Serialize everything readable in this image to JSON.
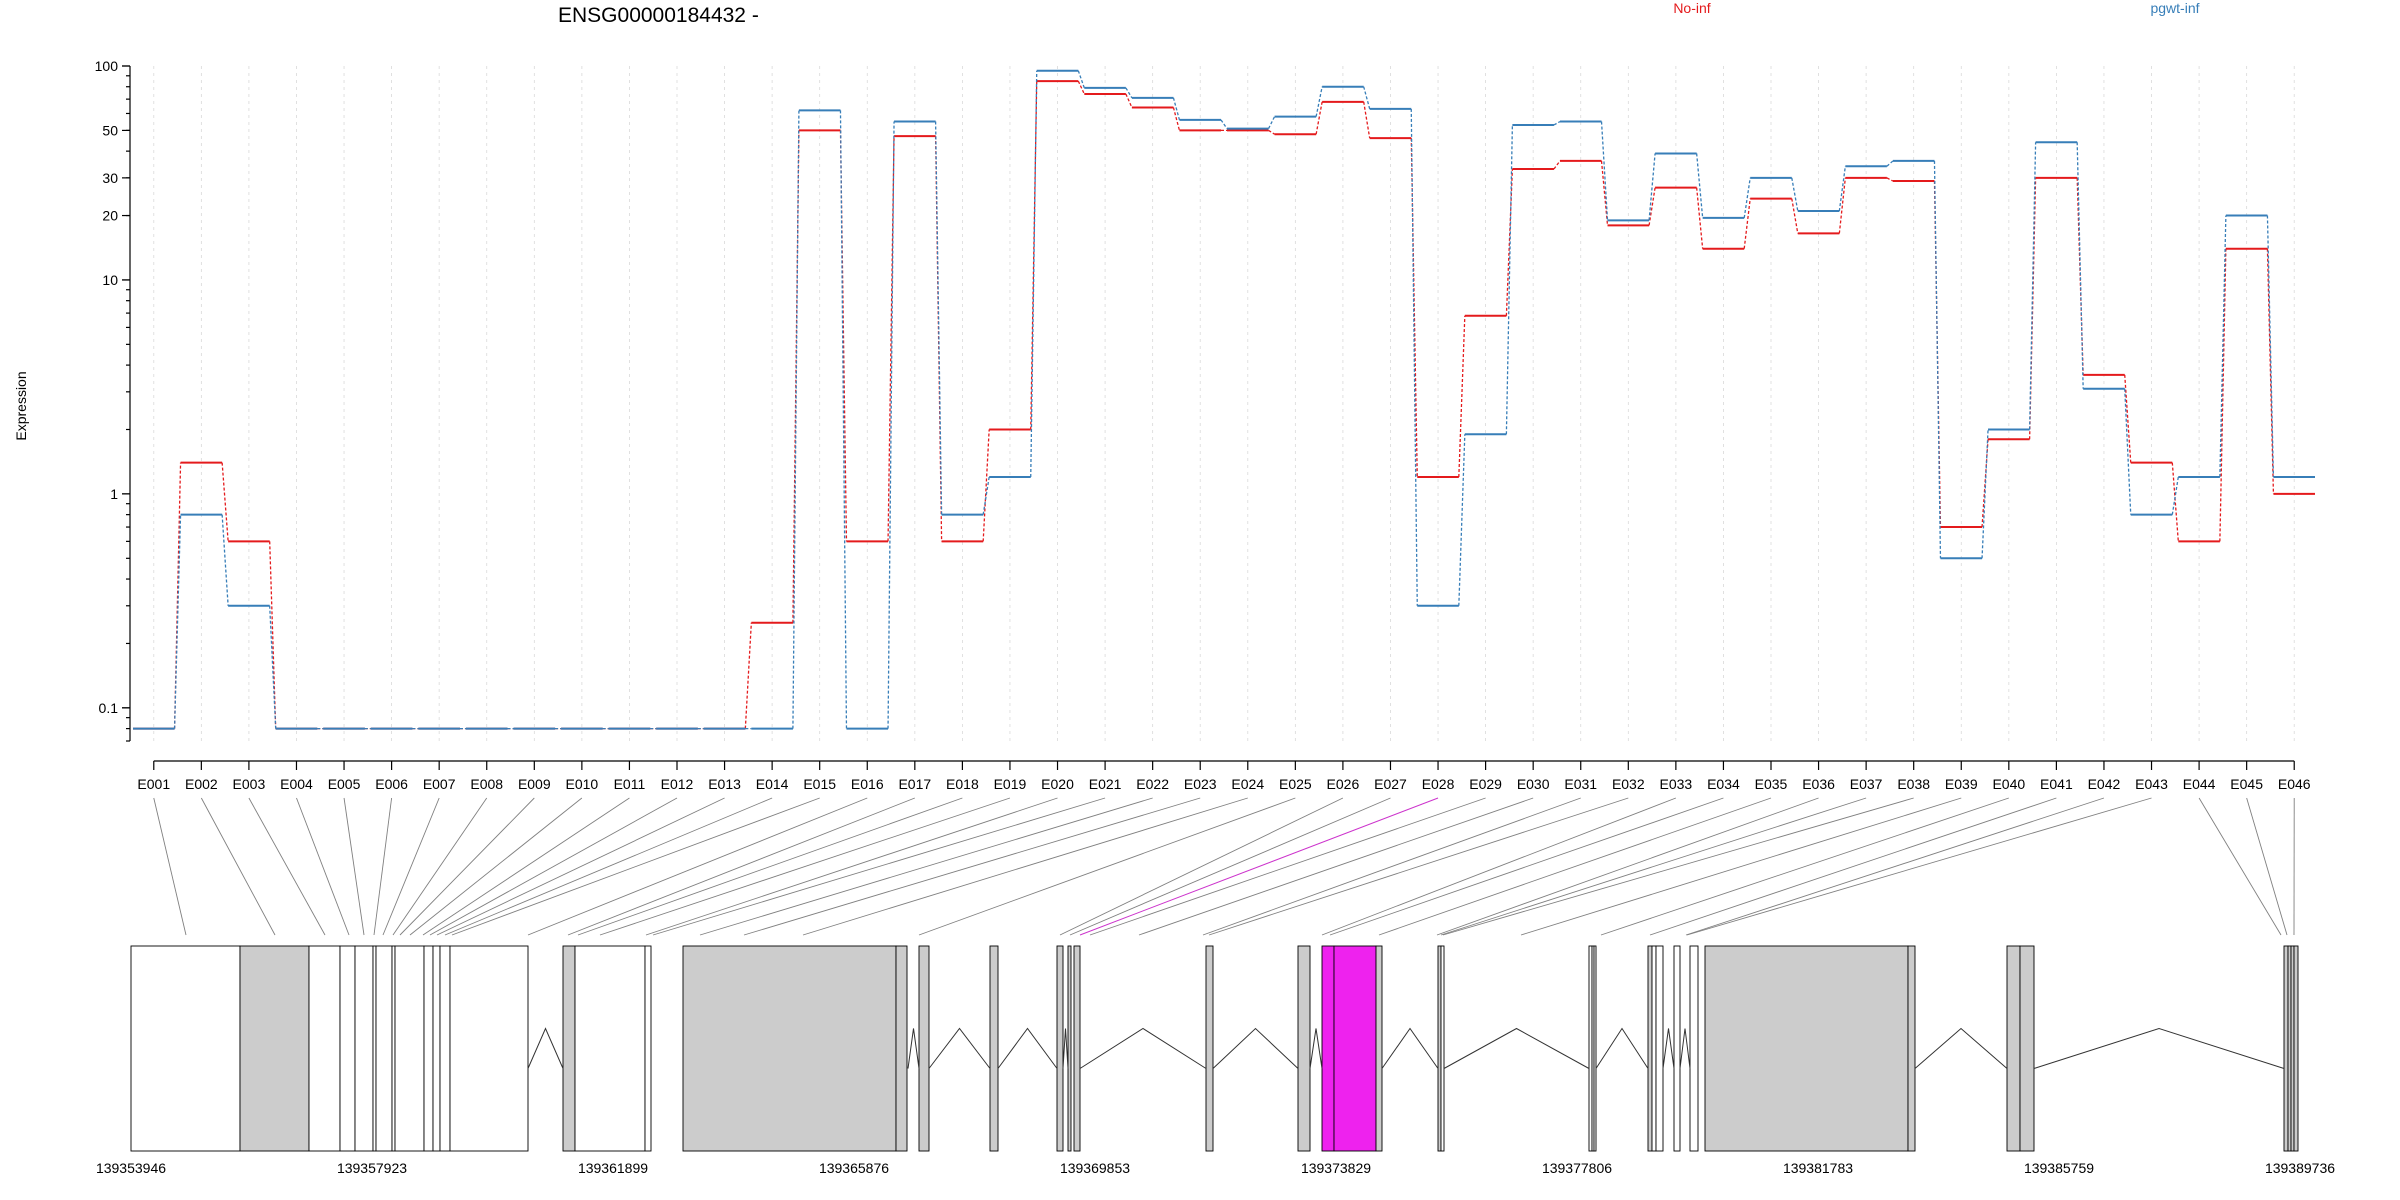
{
  "chart_data": {
    "type": "line",
    "title": "ENSG00000184432 -",
    "ylabel": "Expression",
    "yscale": "log",
    "ylim": [
      0.07,
      100
    ],
    "yticks": [
      {
        "value": 0.1,
        "label": "0.1"
      },
      {
        "value": 1,
        "label": "1"
      },
      {
        "value": 10,
        "label": "10"
      },
      {
        "value": 20,
        "label": "20"
      },
      {
        "value": 30,
        "label": "30"
      },
      {
        "value": 50,
        "label": "50"
      },
      {
        "value": 100,
        "label": "100"
      }
    ],
    "categories": [
      "E001",
      "E002",
      "E003",
      "E004",
      "E005",
      "E006",
      "E007",
      "E008",
      "E009",
      "E010",
      "E011",
      "E012",
      "E013",
      "E014",
      "E015",
      "E016",
      "E017",
      "E018",
      "E019",
      "E020",
      "E021",
      "E022",
      "E023",
      "E024",
      "E025",
      "E026",
      "E027",
      "E028",
      "E029",
      "E030",
      "E031",
      "E032",
      "E033",
      "E034",
      "E035",
      "E036",
      "E037",
      "E038",
      "E039",
      "E040",
      "E041",
      "E042",
      "E043",
      "E044",
      "E045",
      "E046"
    ],
    "series": [
      {
        "name": "No-inf",
        "color": "#e41a1c",
        "values": [
          0.08,
          1.4,
          0.6,
          0.08,
          0.08,
          0.08,
          0.08,
          0.08,
          0.08,
          0.08,
          0.08,
          0.08,
          0.08,
          0.25,
          50,
          0.6,
          47,
          0.6,
          2.0,
          85,
          74,
          64,
          50,
          50,
          48,
          68,
          46,
          1.2,
          6.8,
          33,
          36,
          18,
          27,
          14,
          24,
          16.5,
          30,
          29,
          0.7,
          1.8,
          30,
          3.6,
          1.4,
          0.6,
          14,
          1.0
        ]
      },
      {
        "name": "pgwt-inf",
        "color": "#377eb8",
        "values": [
          0.08,
          0.8,
          0.3,
          0.08,
          0.08,
          0.08,
          0.08,
          0.08,
          0.08,
          0.08,
          0.08,
          0.08,
          0.08,
          0.08,
          62,
          0.08,
          55,
          0.8,
          1.2,
          95,
          79,
          71,
          56,
          51,
          58,
          80,
          63,
          0.3,
          1.9,
          53,
          55,
          19,
          39,
          19.5,
          30,
          21,
          34,
          36,
          0.5,
          2.0,
          44,
          3.1,
          0.8,
          1.2,
          20,
          1.2
        ]
      }
    ],
    "gene_model": {
      "coordinate_ticks": [
        "139353946",
        "139357923",
        "139361899",
        "139365876",
        "139369853",
        "139373829",
        "139377806",
        "139381783",
        "139385759",
        "139389736"
      ],
      "highlighted_exon": "E028",
      "highlight_color": "#ee22ee",
      "block_fill": "#cccccc"
    },
    "grid": true,
    "legend": "top"
  }
}
